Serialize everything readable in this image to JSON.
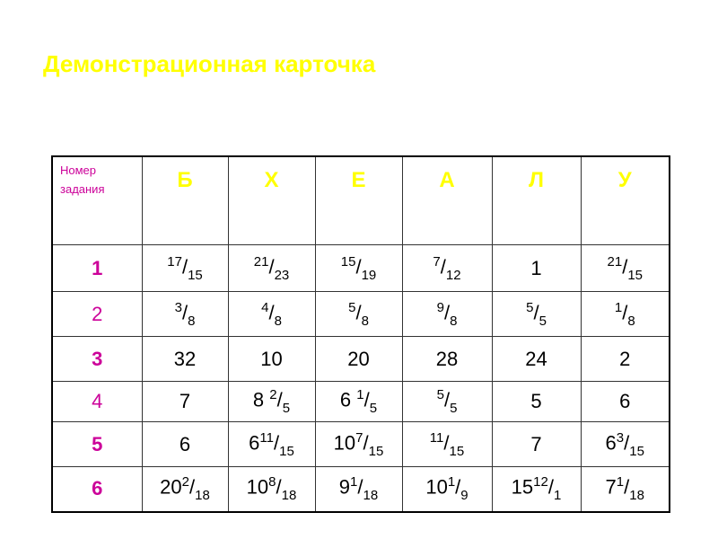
{
  "title": "Демонстрационная карточка",
  "colors": {
    "title": "#ffff00",
    "letters": "#ffff00",
    "row_numbers": "#cc0099"
  },
  "table": {
    "corner_label": "Номер задания",
    "columns": [
      "Б",
      "Х",
      "Е",
      "А",
      "Л",
      "У"
    ],
    "rows": [
      {
        "number": "1",
        "bold": true,
        "cells": [
          {
            "num": "17",
            "den": "15"
          },
          {
            "num": "21",
            "den": "23"
          },
          {
            "num": "15",
            "den": "19"
          },
          {
            "num": "7",
            "den": "12"
          },
          {
            "whole": "1"
          },
          {
            "num": "21",
            "den": "15"
          }
        ]
      },
      {
        "number": "2",
        "bold": false,
        "cells": [
          {
            "num": "3",
            "den": "8"
          },
          {
            "num": "4",
            "den": "8"
          },
          {
            "num": "5",
            "den": "8"
          },
          {
            "num": "9",
            "den": "8"
          },
          {
            "num": "5",
            "den": "5"
          },
          {
            "num": "1",
            "den": "8"
          }
        ]
      },
      {
        "number": "3",
        "bold": true,
        "cells": [
          {
            "whole": "32"
          },
          {
            "whole": "10"
          },
          {
            "whole": "20"
          },
          {
            "whole": "28"
          },
          {
            "whole": "24"
          },
          {
            "whole": "2"
          }
        ]
      },
      {
        "number": "4",
        "bold": false,
        "cells": [
          {
            "whole": "7"
          },
          {
            "whole": "8 ",
            "num": "2",
            "den": "5"
          },
          {
            "whole": "6 ",
            "num": "1",
            "den": "5"
          },
          {
            "num": "5",
            "den": "5"
          },
          {
            "whole": "5"
          },
          {
            "whole": "6"
          }
        ]
      },
      {
        "number": "5",
        "bold": true,
        "cells": [
          {
            "whole": "6"
          },
          {
            "whole": "6",
            "num": "11",
            "den": "15"
          },
          {
            "whole": "10",
            "num": "7",
            "den": "15"
          },
          {
            "num": "11",
            "den": "15"
          },
          {
            "whole": "7"
          },
          {
            "whole": "6",
            "num": "3",
            "den": "15"
          }
        ]
      },
      {
        "number": "6",
        "bold": true,
        "cells": [
          {
            "whole": "20",
            "num": "2",
            "den": "18"
          },
          {
            "whole": "10",
            "num": "8",
            "den": "18"
          },
          {
            "whole": "9",
            "num": "1",
            "den": "18"
          },
          {
            "whole": "10",
            "num": "1",
            "den": "9"
          },
          {
            "whole": "15",
            "num": "12",
            "den": "1"
          },
          {
            "whole": "7",
            "num": "1",
            "den": "18"
          }
        ]
      }
    ]
  }
}
